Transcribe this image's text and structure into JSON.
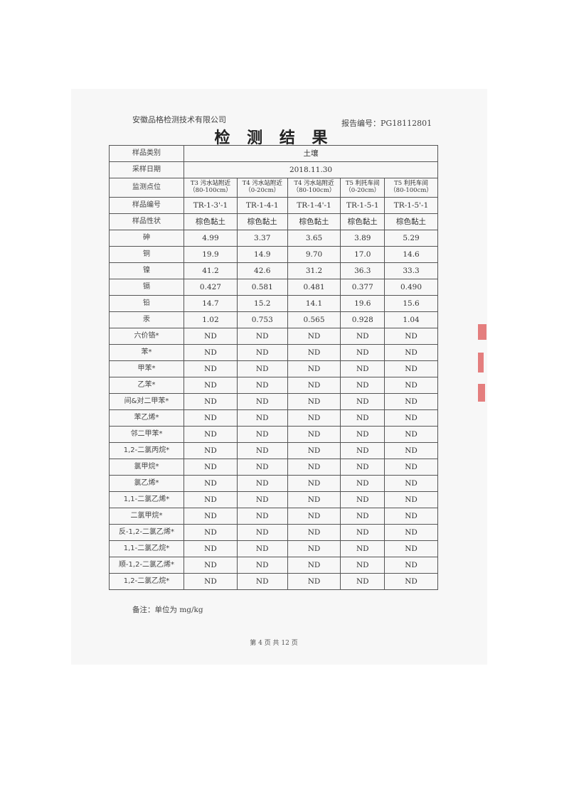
{
  "header": {
    "company": "安徽品格检测技术有限公司",
    "report_no": "报告编号：PG18112801",
    "title": "检 测 结 果"
  },
  "table": {
    "sample_type_label": "样品类别",
    "sample_type": "土壤",
    "date_label": "采样日期",
    "date": "2018.11.30",
    "location_label": "监测点位",
    "locations": [
      {
        "name": "T3 污水站附近",
        "depth": "（80-100cm）"
      },
      {
        "name": "T4 污水站附近",
        "depth": "（0-20cm）"
      },
      {
        "name": "T4 污水站附近",
        "depth": "（80-100cm）"
      },
      {
        "name": "T5 利托车间",
        "depth": "（0-20cm）"
      },
      {
        "name": "T5 利托车间",
        "depth": "（80-100cm）"
      }
    ],
    "sample_id_label": "样品编号",
    "sample_ids": [
      "TR-1-3'-1",
      "TR-1-4-1",
      "TR-1-4'-1",
      "TR-1-5-1",
      "TR-1-5'-1"
    ],
    "appearance_label": "样品性状",
    "appearances": [
      "棕色黏土",
      "棕色黏土",
      "棕色黏土",
      "棕色黏土",
      "棕色黏土"
    ],
    "rows": [
      {
        "item": "砷",
        "values": [
          "4.99",
          "3.37",
          "3.65",
          "3.89",
          "5.29"
        ]
      },
      {
        "item": "铜",
        "values": [
          "19.9",
          "14.9",
          "9.70",
          "17.0",
          "14.6"
        ]
      },
      {
        "item": "镍",
        "values": [
          "41.2",
          "42.6",
          "31.2",
          "36.3",
          "33.3"
        ]
      },
      {
        "item": "镉",
        "values": [
          "0.427",
          "0.581",
          "0.481",
          "0.377",
          "0.490"
        ]
      },
      {
        "item": "铅",
        "values": [
          "14.7",
          "15.2",
          "14.1",
          "19.6",
          "15.6"
        ]
      },
      {
        "item": "汞",
        "values": [
          "1.02",
          "0.753",
          "0.565",
          "0.928",
          "1.04"
        ]
      },
      {
        "item": "六价铬*",
        "values": [
          "ND",
          "ND",
          "ND",
          "ND",
          "ND"
        ]
      },
      {
        "item": "苯*",
        "values": [
          "ND",
          "ND",
          "ND",
          "ND",
          "ND"
        ]
      },
      {
        "item": "甲苯*",
        "values": [
          "ND",
          "ND",
          "ND",
          "ND",
          "ND"
        ]
      },
      {
        "item": "乙苯*",
        "values": [
          "ND",
          "ND",
          "ND",
          "ND",
          "ND"
        ]
      },
      {
        "item": "间&对二甲苯*",
        "values": [
          "ND",
          "ND",
          "ND",
          "ND",
          "ND"
        ]
      },
      {
        "item": "苯乙烯*",
        "values": [
          "ND",
          "ND",
          "ND",
          "ND",
          "ND"
        ]
      },
      {
        "item": "邻二甲苯*",
        "values": [
          "ND",
          "ND",
          "ND",
          "ND",
          "ND"
        ]
      },
      {
        "item": "1,2-二氯丙烷*",
        "values": [
          "ND",
          "ND",
          "ND",
          "ND",
          "ND"
        ]
      },
      {
        "item": "氯甲烷*",
        "values": [
          "ND",
          "ND",
          "ND",
          "ND",
          "ND"
        ]
      },
      {
        "item": "氯乙烯*",
        "values": [
          "ND",
          "ND",
          "ND",
          "ND",
          "ND"
        ]
      },
      {
        "item": "1,1-二氯乙烯*",
        "values": [
          "ND",
          "ND",
          "ND",
          "ND",
          "ND"
        ]
      },
      {
        "item": "二氯甲烷*",
        "values": [
          "ND",
          "ND",
          "ND",
          "ND",
          "ND"
        ]
      },
      {
        "item": "反-1,2-二氯乙烯*",
        "values": [
          "ND",
          "ND",
          "ND",
          "ND",
          "ND"
        ]
      },
      {
        "item": "1,1-二氯乙烷*",
        "values": [
          "ND",
          "ND",
          "ND",
          "ND",
          "ND"
        ]
      },
      {
        "item": "顺-1,2-二氯乙烯*",
        "values": [
          "ND",
          "ND",
          "ND",
          "ND",
          "ND"
        ]
      },
      {
        "item": "1,2-二氯乙烷*",
        "values": [
          "ND",
          "ND",
          "ND",
          "ND",
          "ND"
        ]
      }
    ]
  },
  "note": "备注：单位为 mg/kg",
  "footer": {
    "page": "第 4 页 共 12 页"
  },
  "colors": {
    "stamp": "#d55555"
  }
}
